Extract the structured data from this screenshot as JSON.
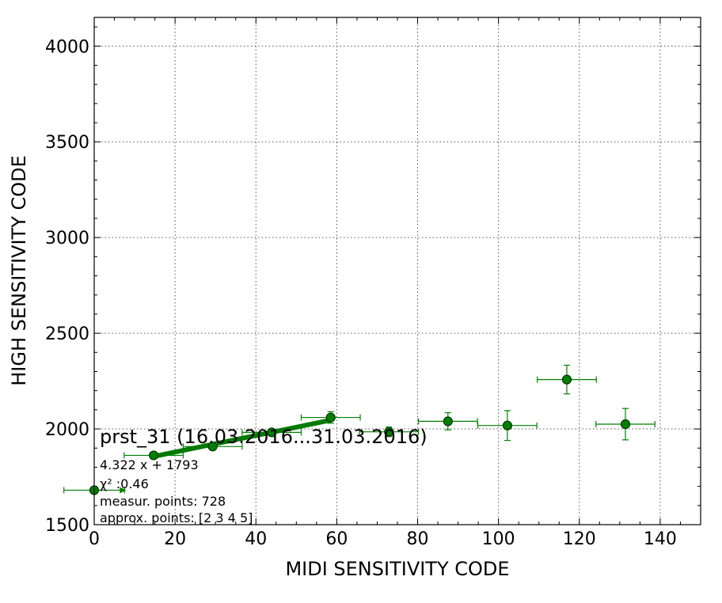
{
  "chart_data": {
    "type": "scatter",
    "xlabel": "MIDI SENSITIVITY CODE",
    "ylabel": "HIGH SENSITIVITY CODE",
    "xlim": [
      0,
      150
    ],
    "ylim": [
      1500,
      4150
    ],
    "x_ticks": [
      0,
      20,
      40,
      60,
      80,
      100,
      120,
      140
    ],
    "y_ticks": [
      1500,
      2000,
      2500,
      3000,
      3500,
      4000
    ],
    "grid": true,
    "colors": {
      "marker_fill": "#008000",
      "marker_edge": "#003300",
      "errorbar": "#008000",
      "fit_line": "#007a00"
    },
    "series": [
      {
        "points": [
          {
            "x": 0.0,
            "y": 1680,
            "xerr": 7.5,
            "yerr": 0
          },
          {
            "x": 14.7,
            "y": 1862,
            "xerr": 7.3,
            "yerr": 10
          },
          {
            "x": 29.3,
            "y": 1908,
            "xerr": 7.3,
            "yerr": 12
          },
          {
            "x": 43.9,
            "y": 1982,
            "xerr": 7.3,
            "yerr": 15
          },
          {
            "x": 58.5,
            "y": 2060,
            "xerr": 7.3,
            "yerr": 30
          },
          {
            "x": 72.9,
            "y": 1985,
            "xerr": 7.3,
            "yerr": 25
          },
          {
            "x": 87.5,
            "y": 2040,
            "xerr": 7.3,
            "yerr": 45
          },
          {
            "x": 102.2,
            "y": 2018,
            "xerr": 7.3,
            "yerr": 78
          },
          {
            "x": 116.9,
            "y": 2258,
            "xerr": 7.3,
            "yerr": 75
          },
          {
            "x": 131.4,
            "y": 2025,
            "xerr": 7.3,
            "yerr": 82
          }
        ]
      }
    ],
    "fit": {
      "slope": 4.322,
      "intercept": 1793,
      "x_range": [
        14.7,
        58.5
      ]
    },
    "annotations": {
      "title": "prst_31 (16.03.2016...31.03.2016)",
      "equation": "4.322 x + 1793",
      "chi2": "χ² :0.46",
      "measur_points": "measur. points: 728",
      "approx_points": "approx. points: [2 3 4 5]"
    }
  }
}
